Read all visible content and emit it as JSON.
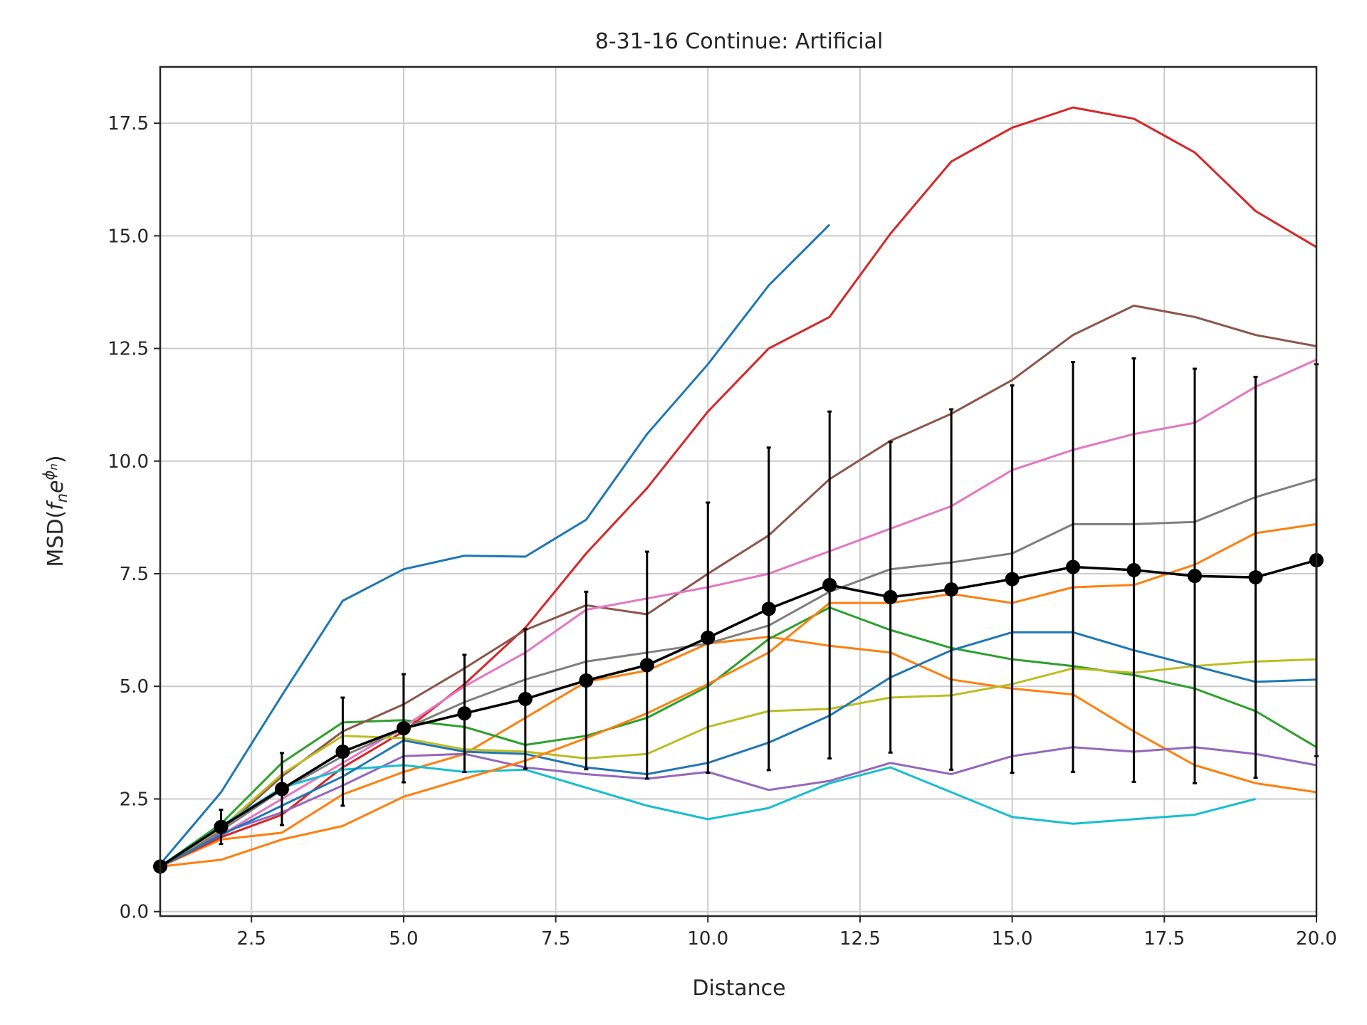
{
  "chart_data": {
    "type": "line",
    "title": "8-31-16 Continue: Artificial",
    "xlabel": "Distance",
    "ylabel_prefix": "MSD(",
    "ylabel_f": "f",
    "ylabel_n": "n",
    "ylabel_e": "e",
    "ylabel_sup": "ϕ",
    "ylabel_sup_sub": "n",
    "ylabel_suffix": ")",
    "xlim": [
      1,
      20
    ],
    "ylim": [
      -0.1,
      18.75
    ],
    "xticks": [
      2.5,
      5.0,
      7.5,
      10.0,
      12.5,
      15.0,
      17.5,
      20.0
    ],
    "xtick_labels": [
      "2.5",
      "5.0",
      "7.5",
      "10.0",
      "12.5",
      "15.0",
      "17.5",
      "20.0"
    ],
    "yticks": [
      0.0,
      2.5,
      5.0,
      7.5,
      10.0,
      12.5,
      15.0,
      17.5
    ],
    "ytick_labels": [
      "0.0",
      "2.5",
      "5.0",
      "7.5",
      "10.0",
      "12.5",
      "15.0",
      "17.5"
    ],
    "grid": true,
    "series": [
      {
        "color": "#1f77b4",
        "x": [
          1,
          2,
          3,
          4,
          5,
          6,
          7,
          8,
          9,
          10,
          11,
          12
        ],
        "y": [
          1.05,
          2.65,
          4.8,
          6.9,
          7.6,
          7.9,
          7.88,
          8.7,
          10.6,
          12.15,
          13.9,
          15.25
        ]
      },
      {
        "color": "#ff7f0e",
        "x": [
          1,
          2,
          3,
          4,
          5,
          6,
          7,
          8,
          9,
          10,
          11,
          12,
          13,
          14,
          15,
          16,
          17,
          18,
          19,
          20
        ],
        "y": [
          1.0,
          1.6,
          1.75,
          2.6,
          3.1,
          3.5,
          4.3,
          5.1,
          5.35,
          5.95,
          6.1,
          5.9,
          5.75,
          5.15,
          4.95,
          4.82,
          4.0,
          3.25,
          2.85,
          2.65
        ]
      },
      {
        "color": "#2ca02c",
        "x": [
          1,
          2,
          3,
          4,
          5,
          6,
          7,
          8,
          9,
          10,
          11,
          12,
          13,
          14,
          15,
          16,
          17,
          18,
          19,
          20
        ],
        "y": [
          1.0,
          1.95,
          3.3,
          4.2,
          4.25,
          4.1,
          3.7,
          3.9,
          4.3,
          5.0,
          6.05,
          6.75,
          6.25,
          5.85,
          5.6,
          5.45,
          5.25,
          4.95,
          4.45,
          3.65
        ]
      },
      {
        "color": "#d62728",
        "x": [
          1,
          2,
          3,
          4,
          5,
          6,
          7,
          8,
          9,
          10,
          11,
          12,
          13,
          14,
          15,
          16,
          17,
          18,
          19,
          20
        ],
        "y": [
          1.0,
          1.65,
          2.15,
          3.2,
          4.0,
          5.05,
          6.3,
          7.95,
          9.4,
          11.1,
          12.5,
          13.2,
          15.05,
          16.65,
          17.4,
          17.85,
          17.6,
          16.85,
          15.55,
          14.75
        ]
      },
      {
        "color": "#9467bd",
        "x": [
          1,
          2,
          3,
          4,
          5,
          6,
          7,
          8,
          9,
          10,
          11,
          12,
          13,
          14,
          15,
          16,
          17,
          18,
          19,
          20
        ],
        "y": [
          1.0,
          1.75,
          2.2,
          2.8,
          3.45,
          3.5,
          3.2,
          3.05,
          2.95,
          3.1,
          2.7,
          2.9,
          3.3,
          3.05,
          3.45,
          3.65,
          3.55,
          3.65,
          3.5,
          3.25
        ]
      },
      {
        "color": "#8c564b",
        "x": [
          1,
          2,
          3,
          4,
          5,
          6,
          7,
          8,
          9,
          10,
          11,
          12,
          13,
          14,
          15,
          16,
          17,
          18,
          19,
          20
        ],
        "y": [
          1.0,
          1.8,
          3.0,
          4.0,
          4.6,
          5.4,
          6.25,
          6.8,
          6.6,
          7.5,
          8.35,
          9.6,
          10.45,
          11.05,
          11.8,
          12.8,
          13.45,
          13.2,
          12.8,
          12.55
        ]
      },
      {
        "color": "#e377c2",
        "x": [
          1,
          2,
          3,
          4,
          5,
          6,
          7,
          8,
          9,
          10,
          11,
          12,
          13,
          14,
          15,
          16,
          17,
          18,
          19,
          20
        ],
        "y": [
          1.0,
          1.7,
          2.5,
          3.3,
          4.1,
          5.0,
          5.75,
          6.7,
          6.95,
          7.2,
          7.5,
          8.0,
          8.5,
          9.0,
          9.8,
          10.25,
          10.6,
          10.85,
          11.65,
          12.25
        ]
      },
      {
        "color": "#7f7f7f",
        "x": [
          1,
          2,
          3,
          4,
          5,
          6,
          7,
          8,
          9,
          10,
          11,
          12,
          13,
          14,
          15,
          16,
          17,
          18,
          19,
          20
        ],
        "y": [
          1.0,
          1.8,
          2.7,
          3.45,
          4.05,
          4.65,
          5.15,
          5.55,
          5.75,
          5.95,
          6.35,
          7.1,
          7.6,
          7.75,
          7.95,
          8.6,
          8.6,
          8.65,
          9.2,
          9.6
        ]
      },
      {
        "color": "#bcbd22",
        "x": [
          1,
          2,
          3,
          4,
          5,
          6,
          7,
          8,
          9,
          10,
          11,
          12,
          13,
          14,
          15,
          16,
          17,
          18,
          19,
          20
        ],
        "y": [
          1.0,
          1.85,
          3.05,
          3.9,
          3.85,
          3.6,
          3.55,
          3.4,
          3.5,
          4.1,
          4.45,
          4.5,
          4.75,
          4.8,
          5.05,
          5.4,
          5.3,
          5.45,
          5.55,
          5.6
        ]
      },
      {
        "color": "#17becf",
        "x": [
          1,
          2,
          3,
          4,
          5,
          6,
          7,
          8,
          9,
          10,
          11,
          12,
          13,
          14,
          15,
          16,
          17,
          18,
          19
        ],
        "y": [
          1.0,
          1.9,
          2.75,
          3.15,
          3.25,
          3.1,
          3.15,
          2.75,
          2.35,
          2.05,
          2.3,
          2.85,
          3.2,
          2.65,
          2.1,
          1.95,
          2.05,
          2.15,
          2.5
        ]
      },
      {
        "color": "#1f77b4",
        "x": [
          1,
          2,
          3,
          4,
          5,
          6,
          7,
          8,
          9,
          10,
          11,
          12,
          13,
          14,
          15,
          16,
          17,
          18,
          19,
          20
        ],
        "y": [
          1.0,
          1.7,
          2.35,
          3.0,
          3.8,
          3.55,
          3.5,
          3.2,
          3.05,
          3.3,
          3.75,
          4.35,
          5.2,
          5.8,
          6.2,
          6.2,
          5.8,
          5.45,
          5.1,
          5.15
        ]
      },
      {
        "color": "#ff7f0e",
        "x": [
          1,
          2,
          3,
          4,
          5,
          6,
          7,
          8,
          9,
          10,
          11,
          12,
          13,
          14,
          15,
          16,
          17,
          18,
          19,
          20
        ],
        "y": [
          1.0,
          1.15,
          1.6,
          1.9,
          2.55,
          2.95,
          3.35,
          3.85,
          4.4,
          5.05,
          5.75,
          6.85,
          6.85,
          7.05,
          6.85,
          7.2,
          7.25,
          7.7,
          8.4,
          8.6
        ]
      },
      {
        "color": "#000000",
        "name_hidden": true,
        "markers": true,
        "x": [
          1,
          2,
          3,
          4,
          5,
          6,
          7,
          8,
          9,
          10,
          11,
          12,
          13,
          14,
          15,
          16,
          17,
          18,
          19,
          20
        ],
        "y": [
          1.0,
          1.88,
          2.72,
          3.55,
          4.07,
          4.4,
          4.72,
          5.13,
          5.47,
          6.08,
          6.72,
          7.25,
          6.98,
          7.15,
          7.38,
          7.65,
          7.58,
          7.45,
          7.42,
          7.8
        ],
        "yerr": [
          0.0,
          0.38,
          0.8,
          1.2,
          1.2,
          1.3,
          1.55,
          1.97,
          2.52,
          3.0,
          3.58,
          3.85,
          3.45,
          4.0,
          4.3,
          4.55,
          4.7,
          4.6,
          4.45,
          4.35
        ]
      }
    ]
  }
}
